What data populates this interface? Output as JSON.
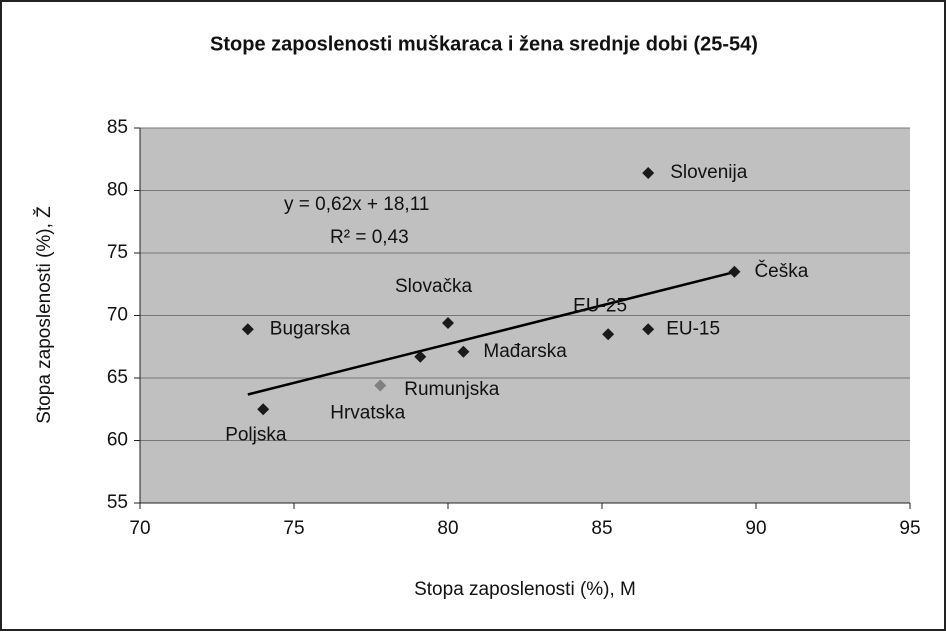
{
  "chart_data": {
    "type": "scatter",
    "title": "Stope zaposlenosti muškaraca i žena srednje dobi (25-54)",
    "xlabel": "Stopa zaposlenosti (%), M",
    "ylabel": "Stopa zaposlenosti (%), Ž",
    "points": [
      {
        "label": "Slovenija",
        "x": 86.5,
        "y": 81.4,
        "color": "#1a1a1a"
      },
      {
        "label": "Češka",
        "x": 89.3,
        "y": 73.5,
        "color": "#1a1a1a"
      },
      {
        "label": "Slovačka",
        "x": 80.0,
        "y": 69.4,
        "color": "#1a1a1a"
      },
      {
        "label": "Bugarska",
        "x": 73.5,
        "y": 68.9,
        "color": "#1a1a1a"
      },
      {
        "label": "EU-25",
        "x": 85.2,
        "y": 68.5,
        "color": "#1a1a1a"
      },
      {
        "label": "EU-15",
        "x": 86.5,
        "y": 68.9,
        "color": "#1a1a1a"
      },
      {
        "label": "Mađarska",
        "x": 80.5,
        "y": 67.1,
        "color": "#1a1a1a"
      },
      {
        "label": "Rumunjska",
        "x": 79.1,
        "y": 66.7,
        "color": "#1a1a1a"
      },
      {
        "label": "Hrvatska",
        "x": 77.8,
        "y": 64.4,
        "color": "#808080"
      },
      {
        "label": "Poljska",
        "x": 74.0,
        "y": 62.5,
        "color": "#1a1a1a"
      }
    ],
    "trendline": {
      "slope": 0.62,
      "intercept": 18.11,
      "xrange": [
        73.5,
        89.2
      ]
    },
    "annotations": [
      "y = 0,62x + 18,11",
      "R² = 0,43"
    ],
    "xlim": [
      70,
      95
    ],
    "xticks": [
      70,
      75,
      80,
      85,
      90,
      95
    ],
    "ylim": [
      55,
      85
    ],
    "yticks": [
      55,
      60,
      65,
      70,
      75,
      80,
      85
    ],
    "grid": true,
    "plot_background": "#c0c0c0"
  }
}
